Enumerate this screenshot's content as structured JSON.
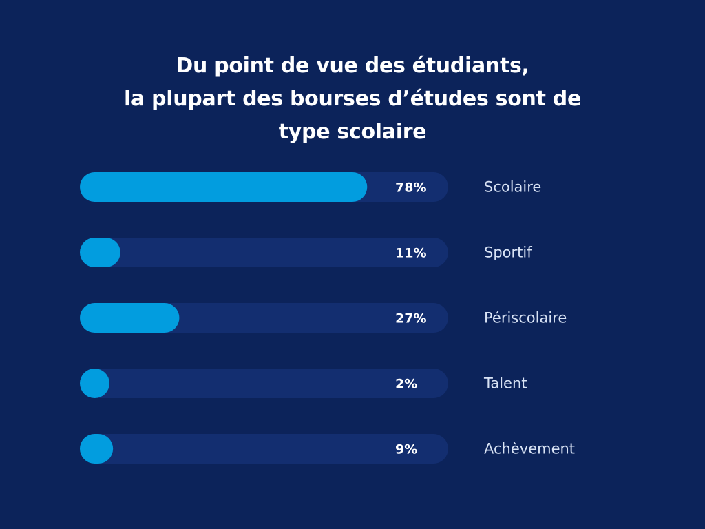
{
  "title_lines": [
    "Du point de vue des étudiants,",
    "la plupart des bourses d’études sont de",
    "type scolaire"
  ],
  "colors": {
    "background": "#0c235a",
    "track": "#132e70",
    "bar": "#029ddf",
    "value_text": "#ffffff",
    "category_text": "#d9e3f5"
  },
  "chart_data": {
    "type": "bar",
    "orientation": "horizontal",
    "title": "Du point de vue des étudiants, la plupart des bourses d’études sont de type scolaire",
    "categories": [
      "Scolaire",
      "Sportif",
      "Périscolaire",
      "Talent",
      "Achèvement"
    ],
    "values": [
      78,
      11,
      27,
      2,
      9
    ],
    "value_labels": [
      "78%",
      "11%",
      "27%",
      "2%",
      "9%"
    ],
    "unit": "%",
    "xlim": [
      0,
      100
    ],
    "grid": false,
    "legend": "none"
  }
}
